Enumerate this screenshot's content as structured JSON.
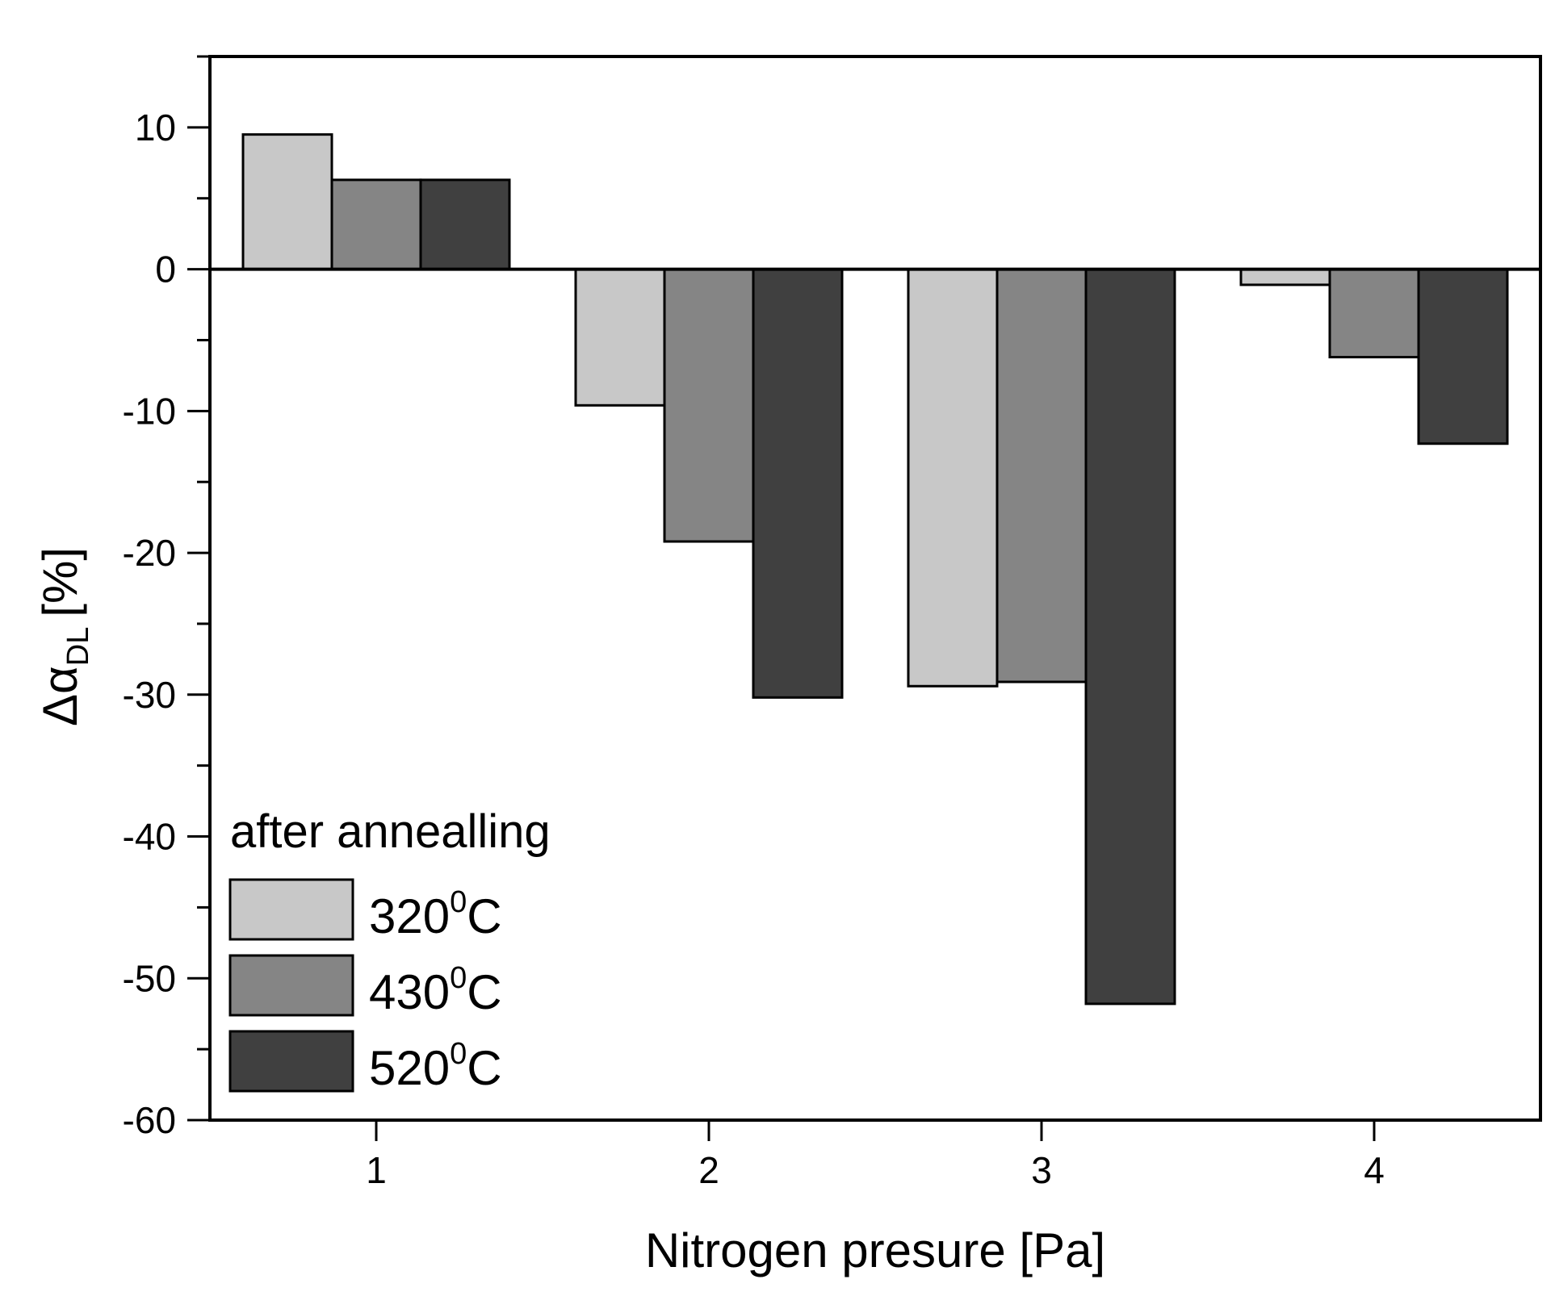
{
  "chart_data": {
    "type": "bar",
    "xlabel": "Nitrogen presure [Pa]",
    "ylabel_parts": {
      "symbol": "Δα",
      "subscript": "DL",
      "unit": "[%]"
    },
    "categories": [
      "1",
      "2",
      "3",
      "4"
    ],
    "ylim": [
      -60,
      15
    ],
    "yticks": [
      10,
      0,
      -10,
      -20,
      -30,
      -40,
      -50,
      -60
    ],
    "ytick_labels": [
      "10",
      "0",
      "-10",
      "-20",
      "-30",
      "-40",
      "-50",
      "-60"
    ],
    "grid": false,
    "legend_position": "bottom-left",
    "legend_title": "after annealling",
    "series": [
      {
        "name": "320",
        "unit_sup": "0",
        "unit": "C",
        "color": "#c8c8c8",
        "values": [
          9.5,
          -9.6,
          -29.4,
          -1.1
        ]
      },
      {
        "name": "430",
        "unit_sup": "0",
        "unit": "C",
        "color": "#858585",
        "values": [
          6.3,
          -19.2,
          -29.1,
          -6.2
        ]
      },
      {
        "name": "520",
        "unit_sup": "0",
        "unit": "C",
        "color": "#404040",
        "values": [
          6.3,
          -30.2,
          -51.8,
          -12.3
        ]
      }
    ]
  }
}
